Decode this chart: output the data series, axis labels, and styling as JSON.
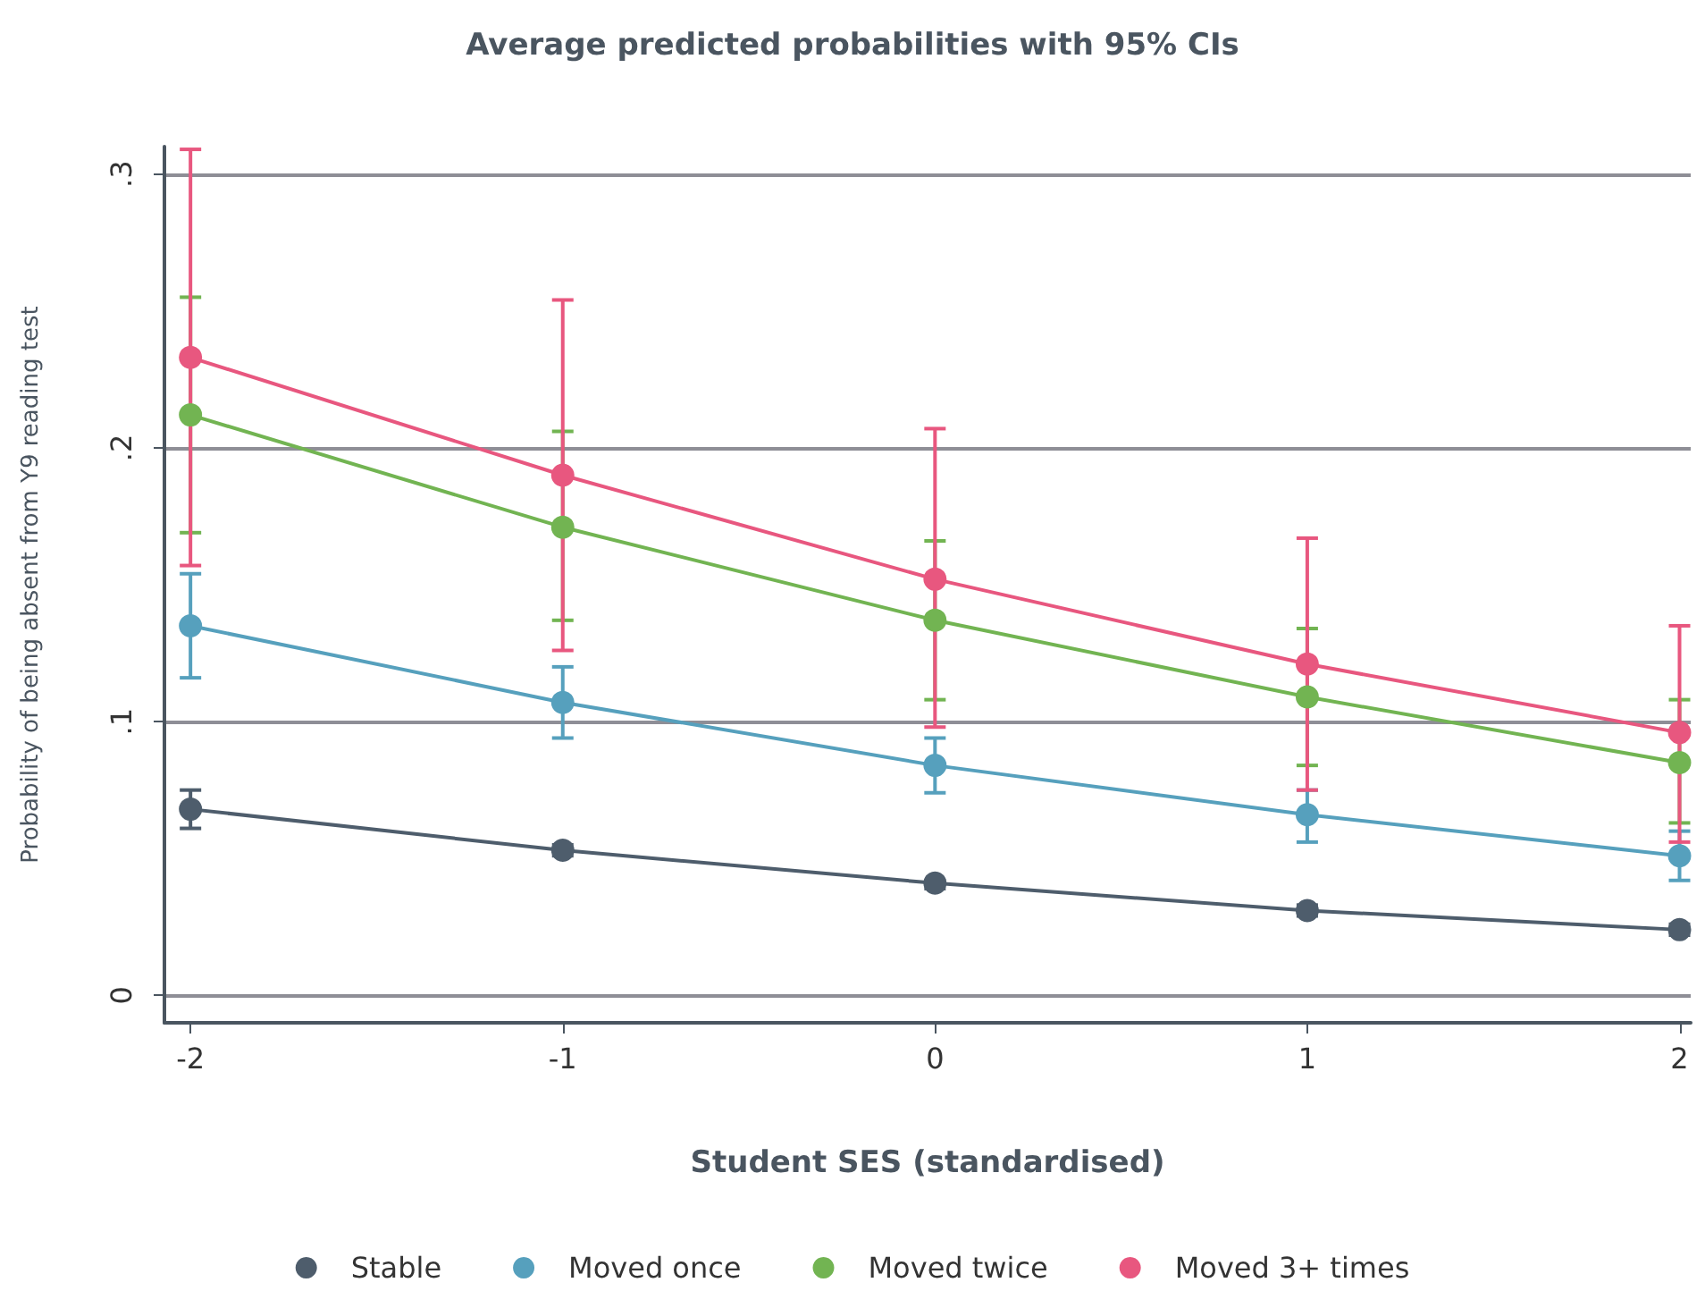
{
  "chart_data": {
    "type": "line",
    "title": "Average predicted probabilities with 95% CIs",
    "xlabel": "Student SES (standardised)",
    "ylabel": "Probability of being absent from Y9 reading test",
    "x": [
      -2,
      -1,
      0,
      1,
      2
    ],
    "xlim": [
      -2.07,
      2.03
    ],
    "xticks": [
      -2,
      -1,
      0,
      1,
      2
    ],
    "ylim": [
      -0.01,
      0.31
    ],
    "yticks": [
      {
        "value": 0,
        "label": "0"
      },
      {
        "value": 0.1,
        "label": ".1"
      },
      {
        "value": 0.2,
        "label": ".2"
      },
      {
        "value": 0.3,
        "label": ".3"
      }
    ],
    "grid": "y",
    "legend": "bottom",
    "marker": "circle",
    "line_style": "solid",
    "series": [
      {
        "name": "Stable",
        "color": "#4e5d6c",
        "values": [
          0.068,
          0.053,
          0.041,
          0.031,
          0.024
        ],
        "errors": [
          [
            0.061,
            0.075
          ],
          [
            0.051,
            0.055
          ],
          [
            0.039,
            0.042
          ],
          [
            0.029,
            0.033
          ],
          [
            0.022,
            0.026
          ]
        ]
      },
      {
        "name": "Moved once",
        "color": "#56a0bd",
        "values": [
          0.135,
          0.107,
          0.084,
          0.066,
          0.051
        ],
        "errors": [
          [
            0.116,
            0.154
          ],
          [
            0.094,
            0.12
          ],
          [
            0.074,
            0.094
          ],
          [
            0.056,
            0.075
          ],
          [
            0.042,
            0.06
          ]
        ]
      },
      {
        "name": "Moved twice",
        "color": "#72b452",
        "values": [
          0.212,
          0.171,
          0.137,
          0.109,
          0.085
        ],
        "errors": [
          [
            0.169,
            0.255
          ],
          [
            0.137,
            0.206
          ],
          [
            0.108,
            0.166
          ],
          [
            0.084,
            0.134
          ],
          [
            0.063,
            0.108
          ]
        ]
      },
      {
        "name": "Moved 3+ times",
        "color": "#e8577f",
        "values": [
          0.233,
          0.19,
          0.152,
          0.121,
          0.096
        ],
        "errors": [
          [
            0.157,
            0.309
          ],
          [
            0.126,
            0.254
          ],
          [
            0.098,
            0.207
          ],
          [
            0.075,
            0.167
          ],
          [
            0.056,
            0.135
          ]
        ]
      }
    ]
  }
}
